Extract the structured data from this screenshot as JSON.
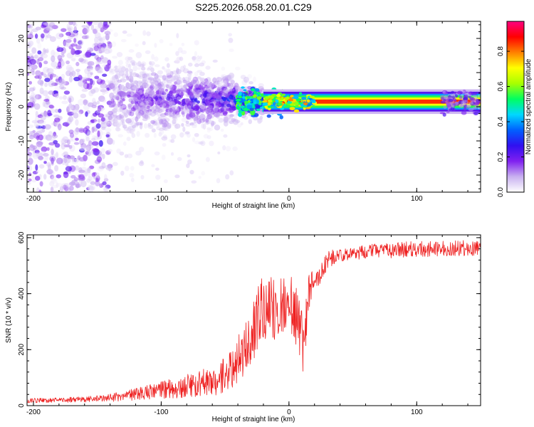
{
  "title": "S225.2026.058.20.01.C29",
  "chart_data": [
    {
      "type": "heatmap",
      "xlabel": "Height of straight line (km)",
      "ylabel": "Frequency (Hz)",
      "xlim": [
        -205,
        150
      ],
      "ylim": [
        -25,
        25
      ],
      "xticks": [
        -200,
        -100,
        0,
        100
      ],
      "yticks": [
        -20,
        -10,
        0,
        10,
        20
      ],
      "colorbar": {
        "label": "Normalized spectral amplitude",
        "range": [
          0.0,
          0.97
        ],
        "ticks": [
          0.0,
          0.2,
          0.4,
          0.6,
          0.8
        ],
        "colors": [
          "#ffffff",
          "#c8b0f0",
          "#8020f0",
          "#3010f0",
          "#0060ff",
          "#00d8ff",
          "#00ff60",
          "#a8ff00",
          "#ffff00",
          "#ff8000",
          "#ff0000",
          "#ff0080"
        ]
      },
      "features": [
        {
          "name": "stable tone",
          "x_range": [
            -20,
            150
          ],
          "frequency": 1.5,
          "amplitude": 0.85
        },
        {
          "name": "scattered noise region",
          "x_range": [
            -205,
            -140
          ],
          "frequency_range": [
            -25,
            25
          ],
          "amplitude": 0.2
        },
        {
          "name": "fading transition",
          "x_range": [
            -140,
            -20
          ],
          "frequency_range": [
            -12,
            10
          ],
          "amplitude": 0.3
        }
      ]
    },
    {
      "type": "line",
      "xlabel": "Height of straight line (km)",
      "ylabel": "SNR (10 * v/v)",
      "xlim": [
        -205,
        150
      ],
      "ylim": [
        0,
        610
      ],
      "xticks": [
        -200,
        -100,
        0,
        100
      ],
      "yticks": [
        0,
        200,
        400,
        600
      ],
      "series": [
        {
          "name": "SNR",
          "color": "#ee2020",
          "x": [
            -205,
            -180,
            -160,
            -140,
            -120,
            -100,
            -80,
            -60,
            -50,
            -40,
            -30,
            -25,
            -20,
            -15,
            -10,
            -5,
            0,
            5,
            10,
            12,
            15,
            20,
            25,
            30,
            40,
            50,
            60,
            80,
            100,
            120,
            150
          ],
          "y": [
            18,
            20,
            22,
            28,
            40,
            55,
            70,
            90,
            110,
            160,
            250,
            300,
            340,
            370,
            320,
            360,
            380,
            340,
            220,
            200,
            400,
            450,
            470,
            520,
            540,
            545,
            550,
            555,
            560,
            560,
            565
          ],
          "noise": [
            8,
            9,
            10,
            14,
            22,
            32,
            42,
            55,
            65,
            85,
            110,
            120,
            130,
            110,
            120,
            110,
            100,
            120,
            120,
            130,
            70,
            40,
            35,
            30,
            25,
            25,
            25,
            28,
            28,
            28,
            28
          ]
        }
      ]
    }
  ]
}
